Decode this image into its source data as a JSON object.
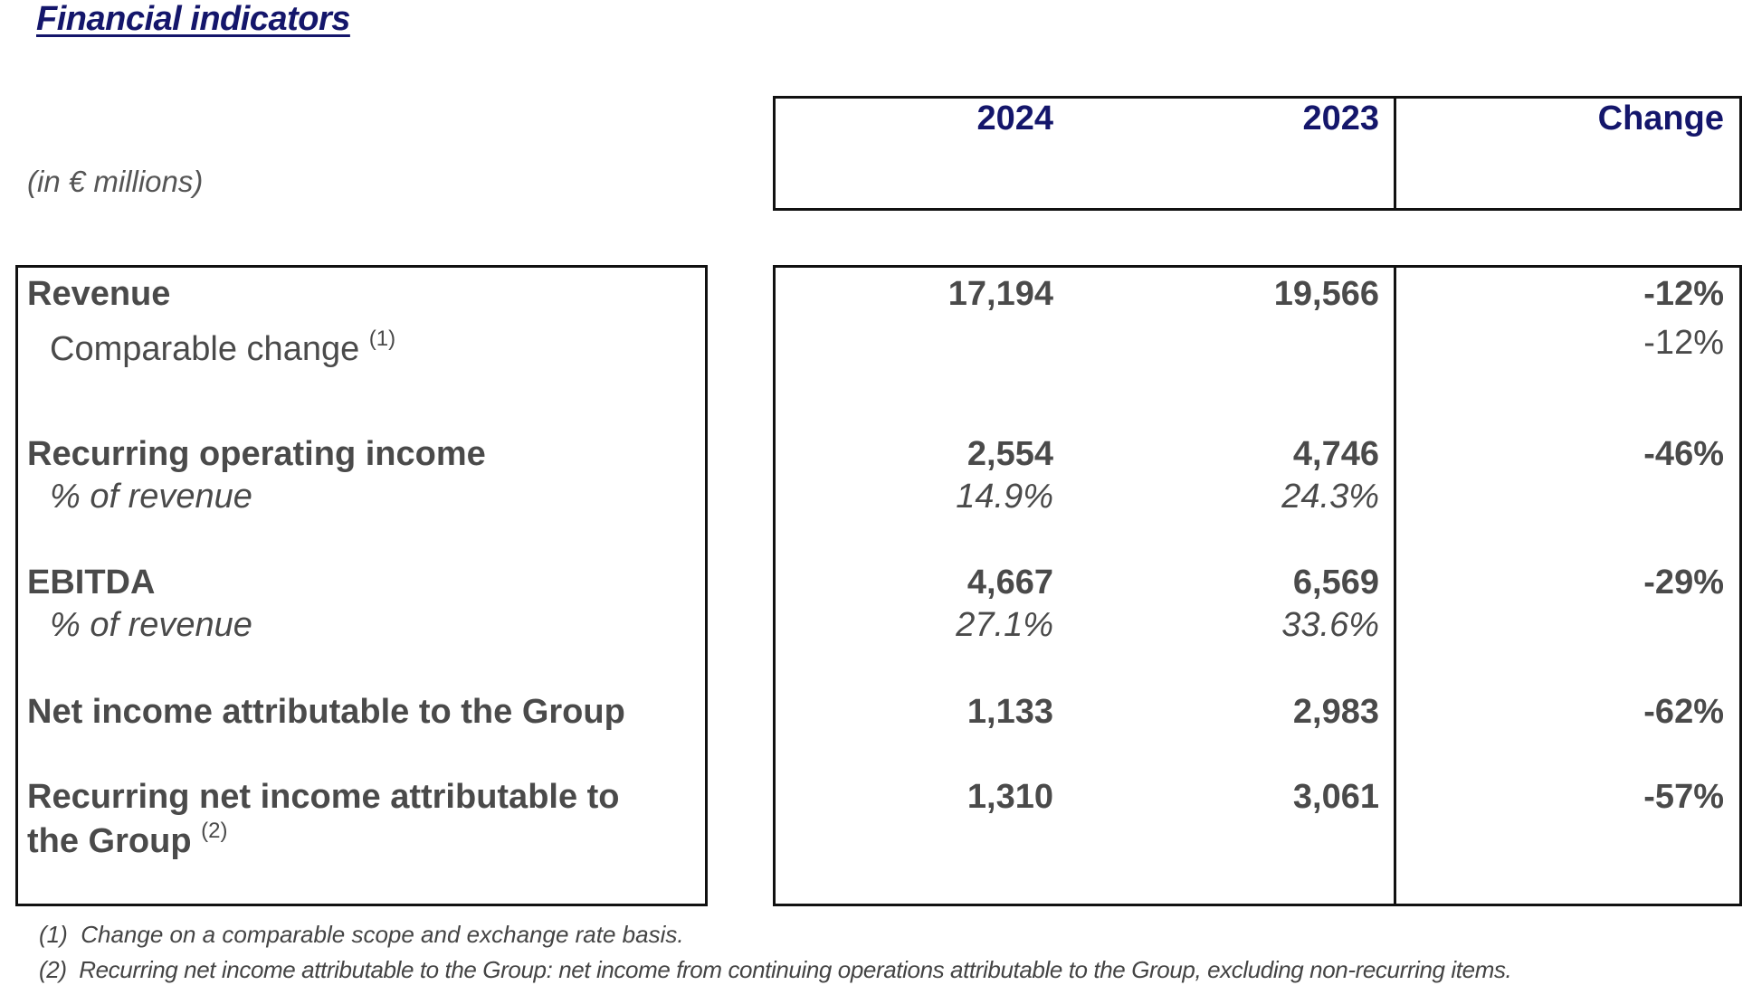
{
  "title": "Financial indicators",
  "unit_note": "(in € millions)",
  "header": {
    "col1": "2024",
    "col2": "2023",
    "col3": "Change"
  },
  "rows": {
    "revenue": {
      "label": "Revenue",
      "v2024": "17,194",
      "v2023": "19,566",
      "change": "-12%"
    },
    "comparable": {
      "label": "Comparable change",
      "note": "(1)",
      "change": "-12%"
    },
    "roi": {
      "label": "Recurring operating income",
      "v2024": "2,554",
      "v2023": "4,746",
      "change": "-46%"
    },
    "roi_pct": {
      "label": "% of revenue",
      "v2024": "14.9%",
      "v2023": "24.3%"
    },
    "ebitda": {
      "label": "EBITDA",
      "v2024": "4,667",
      "v2023": "6,569",
      "change": "-29%"
    },
    "ebitda_pct": {
      "label": "% of revenue",
      "v2024": "27.1%",
      "v2023": "33.6%"
    },
    "net_income": {
      "label": "Net income attributable to the Group",
      "v2024": "1,133",
      "v2023": "2,983",
      "change": "-62%"
    },
    "recurring_net": {
      "label_line1": "Recurring net income attributable to",
      "label_line2": "the Group",
      "note": "(2)",
      "v2024": "1,310",
      "v2023": "3,061",
      "change": "-57%"
    }
  },
  "footnotes": [
    {
      "num": "(1)",
      "text": "Change on a comparable scope and exchange rate basis."
    },
    {
      "num": "(2)",
      "text": "Recurring net income attributable to the Group: net income from continuing operations attributable to the Group, excluding non-recurring items."
    }
  ],
  "colors": {
    "title": "#14166b",
    "text": "#4a4a4a",
    "border": "#111111"
  }
}
